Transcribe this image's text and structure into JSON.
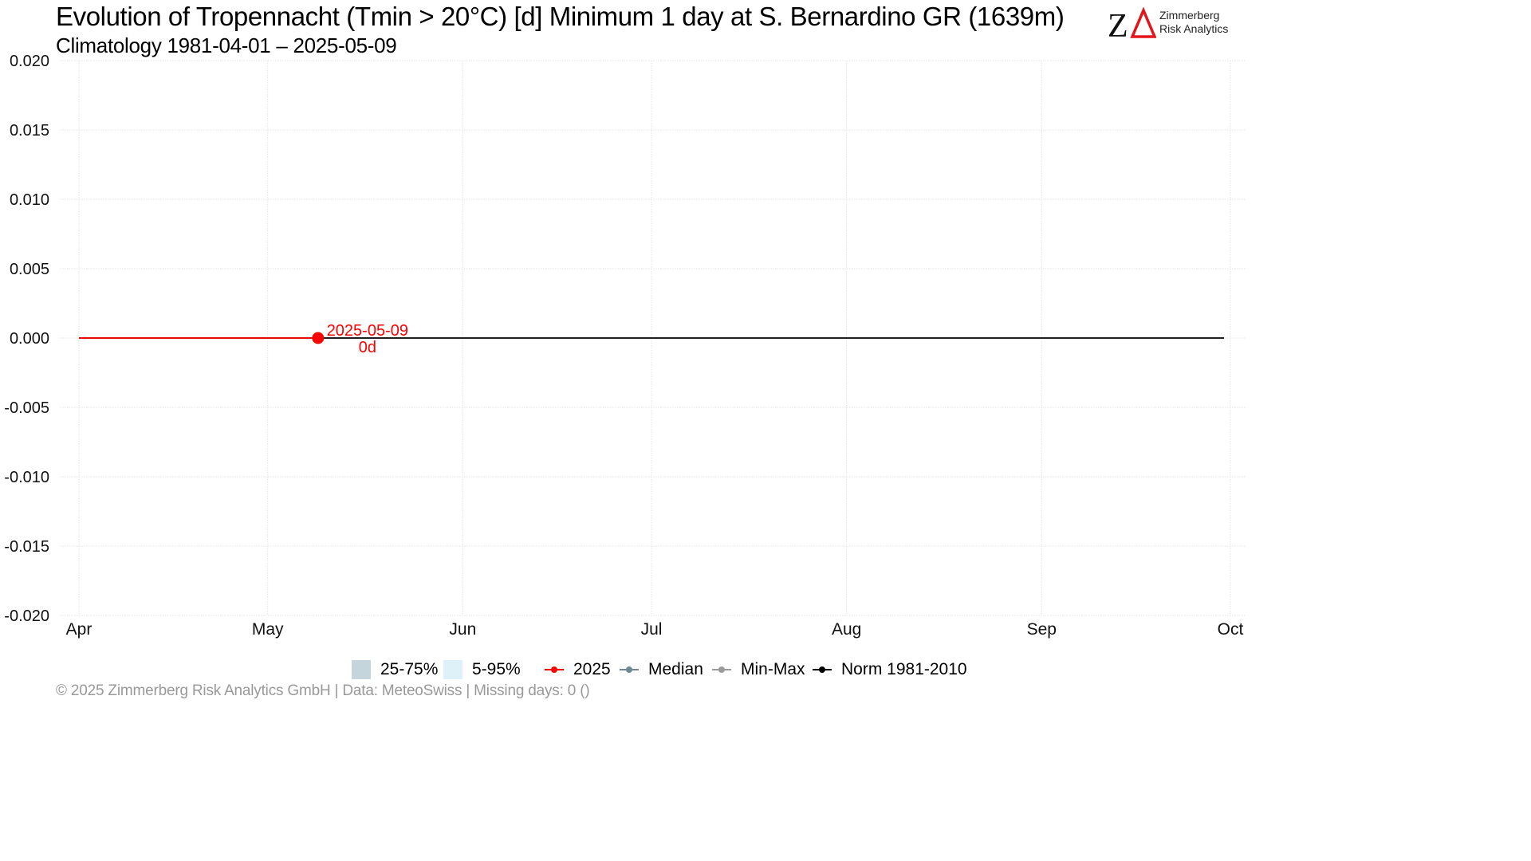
{
  "header": {
    "title": "Evolution of Tropennacht (Tmin > 20°C) [d] Minimum 1 day at S. Bernardino  GR (1639m)",
    "subtitle": "Climatology 1981-04-01 – 2025-05-09"
  },
  "logo": {
    "line1": "Zimmerberg",
    "line2": "Risk Analytics",
    "mark_colors": {
      "z": "#111111",
      "delta": "#e4141b"
    }
  },
  "footer": {
    "text": "©  2025 Zimmerberg Risk Analytics GmbH | Data: MeteoSwiss | Missing days: 0 ()"
  },
  "legend": {
    "items": [
      {
        "label": "25-75%",
        "kind": "box",
        "color": "#c5d5dc"
      },
      {
        "label": "5-95%",
        "kind": "box",
        "color": "#dff1f8"
      },
      {
        "label": "2025",
        "kind": "line",
        "color": "#ff0000"
      },
      {
        "label": "Median",
        "kind": "line",
        "color": "#6e8793"
      },
      {
        "label": "Min-Max",
        "kind": "line",
        "color": "#9a9a9a"
      },
      {
        "label": "Norm 1981-2010",
        "kind": "line",
        "color": "#000000"
      }
    ]
  },
  "chart_data": {
    "type": "line",
    "title": "Evolution of Tropennacht (Tmin > 20°C) [d] Minimum 1 day at S. Bernardino  GR (1639m)",
    "subtitle": "Climatology 1981-04-01 – 2025-05-09",
    "xlabel": "",
    "ylabel": "",
    "x_range": [
      "2025-04-01",
      "2025-10-01"
    ],
    "x_ticks": [
      {
        "date": "2025-04-01",
        "label": "Apr"
      },
      {
        "date": "2025-05-01",
        "label": "May"
      },
      {
        "date": "2025-06-01",
        "label": "Jun"
      },
      {
        "date": "2025-07-01",
        "label": "Jul"
      },
      {
        "date": "2025-08-01",
        "label": "Aug"
      },
      {
        "date": "2025-09-01",
        "label": "Sep"
      },
      {
        "date": "2025-10-01",
        "label": "Oct"
      }
    ],
    "ylim": [
      -0.02,
      0.02
    ],
    "y_ticks": [
      -0.02,
      -0.015,
      -0.01,
      -0.005,
      0,
      0.005,
      0.01,
      0.015,
      0.02
    ],
    "y_tick_labels": [
      "-0.020",
      "-0.015",
      "-0.010",
      "-0.005",
      "0.000",
      "0.005",
      "0.010",
      "0.015",
      "0.020"
    ],
    "grid": true,
    "legend_position": "bottom",
    "series": [
      {
        "name": "Norm 1981-2010",
        "color": "#000000",
        "x": [
          "2025-04-01",
          "2025-09-30"
        ],
        "y": [
          0,
          0
        ]
      },
      {
        "name": "2025",
        "color": "#ff0000",
        "x": [
          "2025-04-01",
          "2025-05-09"
        ],
        "y": [
          0,
          0
        ]
      }
    ],
    "annotations": [
      {
        "date": "2025-05-09",
        "value": 0,
        "line1": "2025-05-09",
        "line2": "0d",
        "color": "#ff0000"
      }
    ]
  }
}
